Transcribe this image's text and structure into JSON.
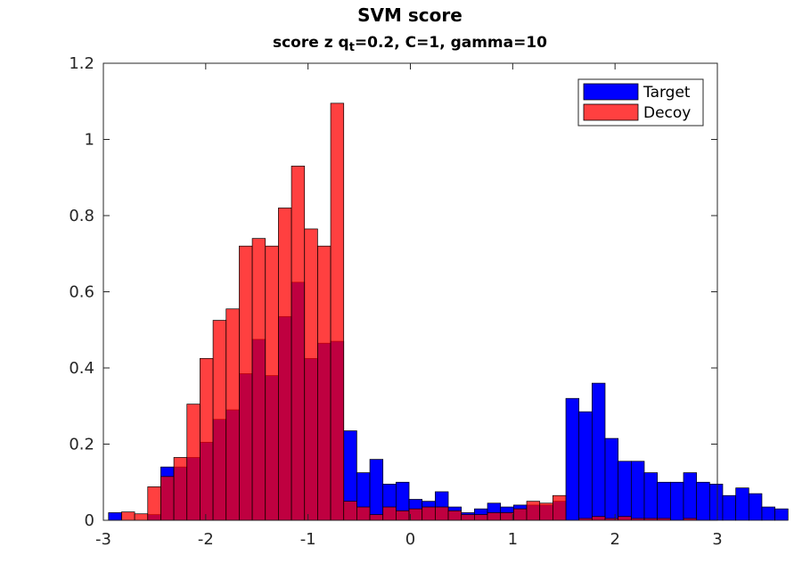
{
  "chart_data": {
    "type": "bar",
    "subtype": "overlapping-histogram",
    "title": "SVM score",
    "subtitle": {
      "prefix": "score  z q",
      "subscript": "t",
      "suffix": "=0.2, C=1, gamma=10"
    },
    "xlabel": "",
    "ylabel": "",
    "xlim": [
      -3,
      3
    ],
    "ylim": [
      0,
      1.2
    ],
    "xticks": [
      -3,
      -2,
      -1,
      0,
      1,
      2,
      3
    ],
    "xtick_labels": [
      "-3",
      "-2",
      "-1",
      "0",
      "1",
      "2",
      "3"
    ],
    "yticks": [
      0,
      0.2,
      0.4,
      0.6,
      0.8,
      1.0,
      1.2
    ],
    "ytick_labels": [
      "0",
      "0.2",
      "0.4",
      "0.6",
      "0.8",
      "1",
      "1.2"
    ],
    "grid": false,
    "legend": {
      "placement": "top-right",
      "entries": [
        "Target",
        "Decoy"
      ]
    },
    "series": [
      {
        "name": "Target",
        "color": "#0000ff",
        "opacity": 1.0,
        "bin_start": -2.9497,
        "bin_width": 0.1277,
        "values": [
          0.02,
          0.0,
          0.0,
          0.015,
          0.14,
          0.14,
          0.165,
          0.205,
          0.265,
          0.29,
          0.385,
          0.475,
          0.38,
          0.535,
          0.625,
          0.425,
          0.465,
          0.47,
          0.235,
          0.125,
          0.16,
          0.095,
          0.1,
          0.055,
          0.05,
          0.075,
          0.035,
          0.02,
          0.03,
          0.045,
          0.035,
          0.04,
          0.04,
          0.04,
          0.05,
          0.32,
          0.285,
          0.36,
          0.215,
          0.155,
          0.155,
          0.125,
          0.1,
          0.1,
          0.125,
          0.1,
          0.095,
          0.065,
          0.085,
          0.07,
          0.035,
          0.03,
          0.0,
          0.0
        ]
      },
      {
        "name": "Decoy",
        "color": "#ff0000",
        "opacity": 0.75,
        "bin_start": -2.9497,
        "bin_width": 0.1277,
        "values": [
          0.0,
          0.022,
          0.017,
          0.088,
          0.115,
          0.165,
          0.305,
          0.425,
          0.525,
          0.555,
          0.72,
          0.74,
          0.72,
          0.82,
          0.93,
          0.765,
          0.72,
          1.095,
          0.05,
          0.035,
          0.015,
          0.035,
          0.025,
          0.03,
          0.035,
          0.035,
          0.025,
          0.015,
          0.015,
          0.02,
          0.02,
          0.03,
          0.05,
          0.045,
          0.065,
          0.0,
          0.005,
          0.01,
          0.005,
          0.01,
          0.005,
          0.005,
          0.005,
          0.0,
          0.005,
          0.0,
          0.0,
          0.0,
          0.0,
          0.0,
          0.0,
          0.0,
          0.0,
          0.0
        ]
      }
    ]
  }
}
